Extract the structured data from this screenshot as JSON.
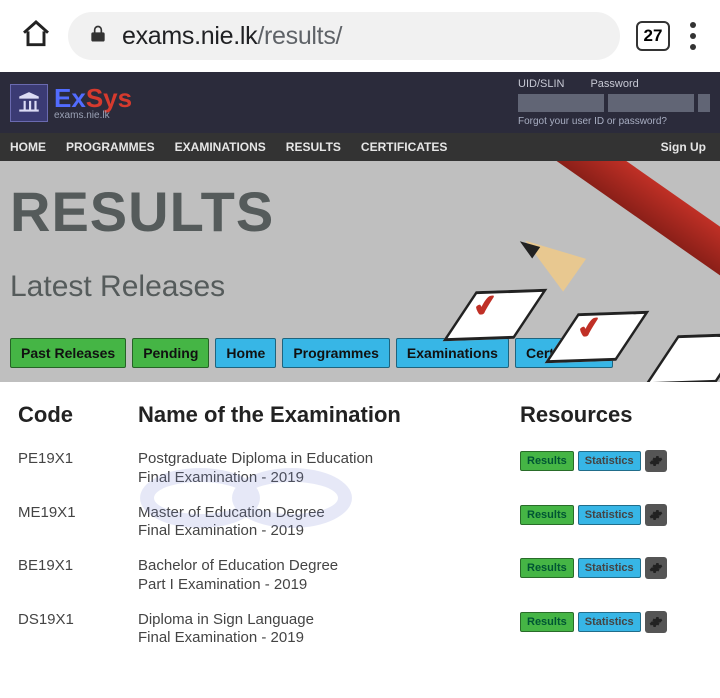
{
  "browser": {
    "url_host": "exams.nie.lk",
    "url_path": "/results/",
    "tab_count": "27"
  },
  "brand": {
    "ex": "Ex",
    "sys": "Sys",
    "sub": "exams.nie.lk"
  },
  "login": {
    "uid_label": "UID/SLIN",
    "pwd_label": "Password",
    "forgot": "Forgot your user ID or password?"
  },
  "nav": {
    "items": [
      "HOME",
      "PROGRAMMES",
      "EXAMINATIONS",
      "RESULTS",
      "CERTIFICATES"
    ],
    "signup": "Sign Up"
  },
  "hero": {
    "title": "RESULTS",
    "subtitle": "Latest Releases",
    "filters": [
      {
        "label": "Past Releases",
        "style": "green"
      },
      {
        "label": "Pending",
        "style": "green"
      },
      {
        "label": "Home",
        "style": "blue"
      },
      {
        "label": "Programmes",
        "style": "blue"
      },
      {
        "label": "Examinations",
        "style": "blue"
      },
      {
        "label": "Certificates",
        "style": "blue"
      }
    ]
  },
  "table": {
    "columns": {
      "code": "Code",
      "name": "Name of the Examination",
      "resources": "Resources"
    },
    "res_labels": {
      "results": "Results",
      "stats": "Statistics"
    },
    "rows": [
      {
        "code": "PE19X1",
        "line1": "Postgraduate Diploma in Education",
        "line2": "Final Examination - 2019"
      },
      {
        "code": "ME19X1",
        "line1": "Master of Education Degree",
        "line2": "Final Examination - 2019"
      },
      {
        "code": "BE19X1",
        "line1": "Bachelor of Education Degree",
        "line2": "Part I Examination - 2019"
      },
      {
        "code": "DS19X1",
        "line1": "Diploma in Sign Language",
        "line2": "Final Examination - 2019"
      }
    ]
  },
  "colors": {
    "green": "#45b545",
    "blue": "#37b6e6",
    "hero_bg": "#bfbfbf",
    "header_bg": "#2b2b3b",
    "nav_bg": "#333333",
    "brand_ex": "#526cff",
    "brand_sys": "#d63a2e"
  }
}
